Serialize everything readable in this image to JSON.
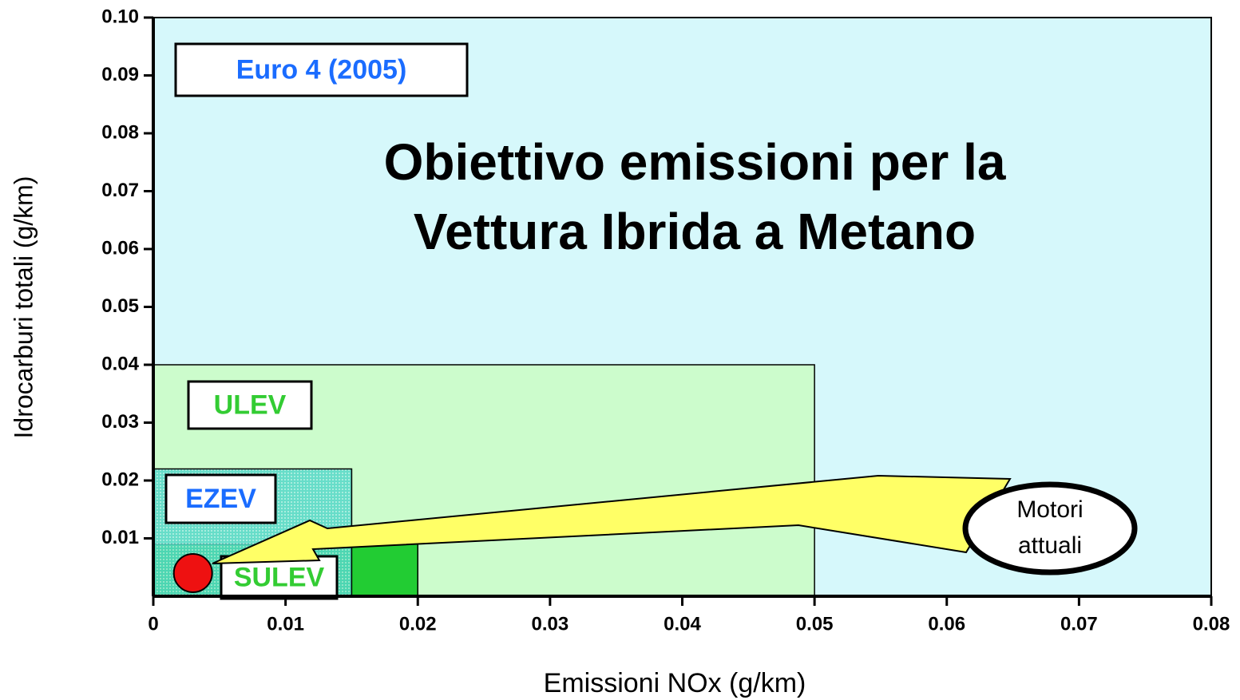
{
  "chart_data": {
    "type": "regions",
    "title": [
      "Obiettivo emissioni per la",
      "Vettura Ibrida a Metano"
    ],
    "x_label": "Emissioni NOx (g/km)",
    "y_label": "Idrocarburi totali (g/km)",
    "xlim": [
      0,
      0.08
    ],
    "ylim": [
      0,
      0.1
    ],
    "xticks": [
      0,
      0.01,
      0.02,
      0.03,
      0.04,
      0.05,
      0.06,
      0.07,
      0.08
    ],
    "yticks": [
      0.01,
      0.02,
      0.03,
      0.04,
      0.05,
      0.06,
      0.07,
      0.08,
      0.09,
      {
        "value": 0.1,
        "label": "0.10"
      }
    ],
    "regions": [
      {
        "name": "Euro 4 (2005)",
        "x": 0.08,
        "y": 0.1,
        "color": "#d6f8fb",
        "label_color": "#1a6cff"
      },
      {
        "name": "ULEV",
        "x": 0.05,
        "y": 0.04,
        "color": "#ccfccc",
        "label_color": "#33cc33"
      },
      {
        "name": "SULEV",
        "x": 0.02,
        "y": 0.009,
        "color": "#22cc33",
        "label_color": "#33cc33"
      },
      {
        "name": "EZEV",
        "x": 0.015,
        "y": 0.022,
        "color": "#55d8c8",
        "label_color": "#1a6cff"
      }
    ],
    "point": {
      "x": 0.003,
      "y": 0.004,
      "color": "#ee1111"
    },
    "annotation": [
      "Motori",
      "attuali"
    ]
  }
}
